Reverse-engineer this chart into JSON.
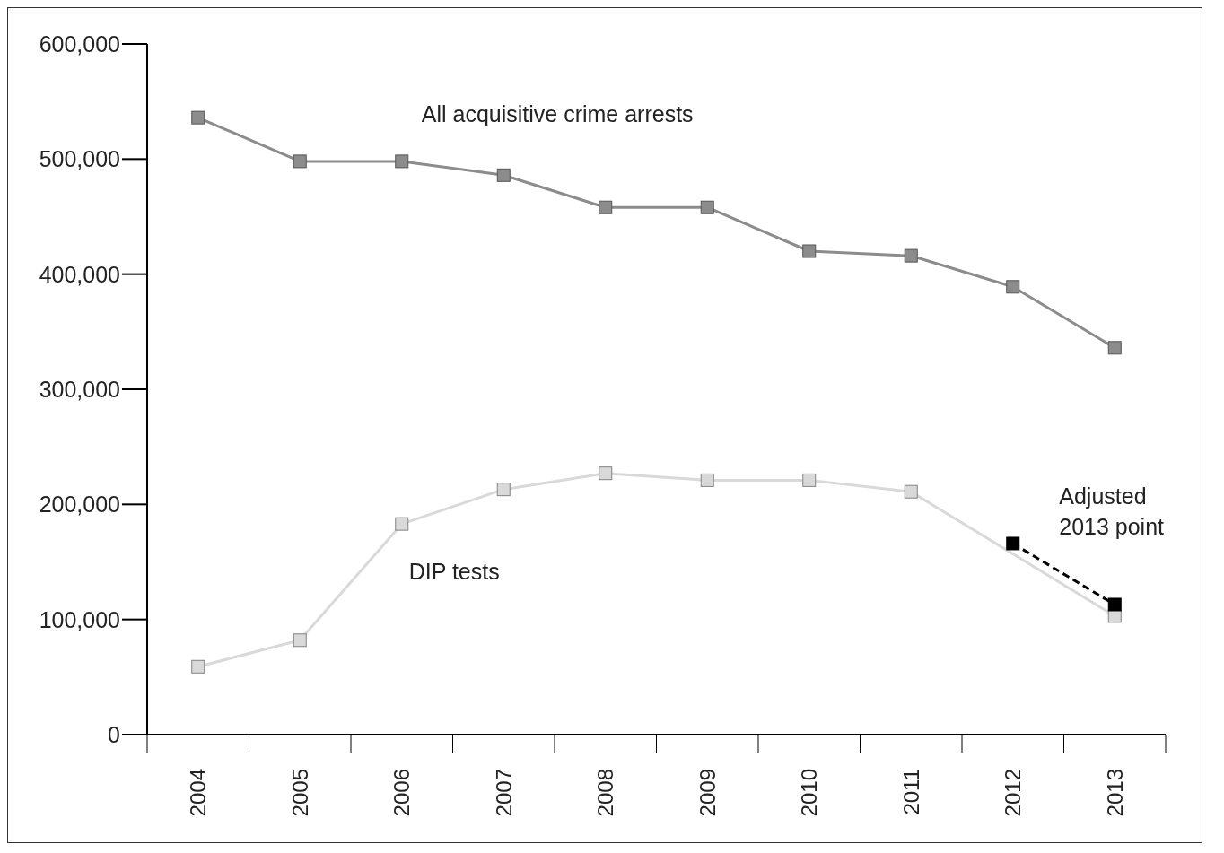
{
  "chart_data": {
    "type": "line",
    "categories": [
      "2004",
      "2005",
      "2006",
      "2007",
      "2008",
      "2009",
      "2010",
      "2011",
      "2012",
      "2013"
    ],
    "series": [
      {
        "name": "All acquisitive crime arrests",
        "color": "#8c8c8c",
        "values": [
          536000,
          498000,
          498000,
          486000,
          458000,
          458000,
          420000,
          416000,
          389000,
          336000
        ]
      },
      {
        "name": "DIP tests",
        "color": "#d9d9d9",
        "values": [
          59000,
          82000,
          183000,
          213000,
          227000,
          221000,
          221000,
          211000,
          null,
          103000
        ]
      },
      {
        "name": "Adjusted 2013 point",
        "color": "#000000",
        "line_style": "dashed",
        "values": [
          null,
          null,
          null,
          null,
          null,
          null,
          null,
          null,
          166000,
          113000
        ]
      }
    ],
    "ylim": [
      0,
      600000
    ],
    "yticks": [
      0,
      {
        "value": 100000,
        "label": "100,000"
      },
      {
        "value": 200000,
        "label": "200,000"
      },
      {
        "value": 300000,
        "label": "300,000"
      },
      {
        "value": 400000,
        "label": "400,000"
      },
      {
        "value": 500000,
        "label": "500,000"
      },
      {
        "value": 600000,
        "label": "600,000"
      }
    ],
    "grid": false,
    "marker": "square",
    "line_style": "solid"
  }
}
